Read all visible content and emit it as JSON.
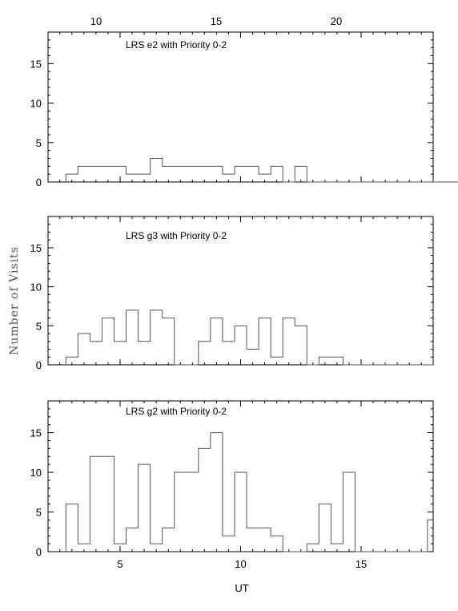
{
  "figure": {
    "ylabel": "Number of Visits",
    "xlabel": "UT"
  },
  "top_axis_ticks": [
    "10",
    "15",
    "20"
  ],
  "bottom_axis_ticks": [
    "5",
    "10",
    "15"
  ],
  "chart_data": [
    {
      "type": "bar",
      "title": "LRS e2 with Priority 0-2",
      "ylim": [
        0,
        19
      ],
      "yticks": [
        "0",
        "5",
        "10",
        "15"
      ],
      "bin_start": 2.75,
      "bin_width": 0.5,
      "values": [
        1,
        2,
        2,
        2,
        2,
        1,
        1,
        3,
        2,
        2,
        2,
        2,
        2,
        1,
        2,
        2,
        1,
        2,
        0,
        2,
        0,
        0,
        0,
        0,
        0,
        0,
        0,
        0,
        0,
        0,
        0,
        0,
        0,
        0,
        0,
        0,
        0,
        0,
        0,
        0,
        0,
        0,
        0,
        0,
        0,
        0,
        0,
        0,
        0,
        0,
        0,
        0,
        0,
        0,
        0,
        0
      ]
    },
    {
      "type": "bar",
      "title": "LRS g3 with Priority 0-2",
      "ylim": [
        0,
        19
      ],
      "yticks": [
        "0",
        "5",
        "10",
        "15"
      ],
      "bin_start": 2.75,
      "bin_width": 0.5,
      "values": [
        1,
        4,
        3,
        6,
        3,
        7,
        3,
        7,
        6,
        0,
        0,
        3,
        6,
        3,
        5,
        2,
        6,
        1,
        6,
        5,
        0,
        1,
        1,
        0,
        0,
        0,
        0,
        0,
        0,
        0,
        0
      ]
    },
    {
      "type": "bar",
      "title": "LRS g2 with Priority 0-2",
      "ylim": [
        0,
        19
      ],
      "yticks": [
        "0",
        "5",
        "10",
        "15"
      ],
      "bin_start": 2.75,
      "bin_width": 0.5,
      "values": [
        6,
        1,
        12,
        12,
        1,
        3,
        11,
        1,
        3,
        10,
        10,
        13,
        15,
        2,
        10,
        3,
        3,
        2,
        0,
        0,
        1,
        6,
        1,
        10,
        0,
        0,
        0,
        0,
        0,
        0,
        4
      ]
    }
  ]
}
